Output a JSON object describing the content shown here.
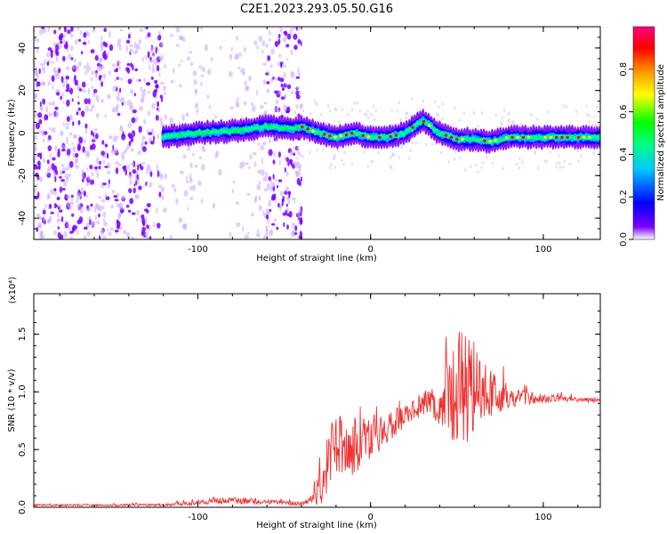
{
  "title": "C2E1.2023.293.05.50.G16",
  "chart_data": [
    {
      "type": "heatmap",
      "title": "C2E1.2023.293.05.50.G16",
      "xlabel": "Height of straight line (km)",
      "ylabel": "Frequency (Hz)",
      "xlim": [
        -195,
        133
      ],
      "ylim": [
        -50,
        50
      ],
      "x_ticks": [
        -100,
        0,
        100
      ],
      "y_ticks": [
        -40,
        -20,
        0,
        20,
        40
      ],
      "colorbar": {
        "label": "Normalized spectral amplitude",
        "range": [
          0.0,
          1.0
        ],
        "ticks": [
          "0.0",
          "0.2",
          "0.4",
          "0.6",
          "0.8"
        ],
        "colors": [
          "#ffffff",
          "#7a00ff",
          "#0000ff",
          "#00c8ff",
          "#00ff80",
          "#00ff00",
          "#ffff00",
          "#ffa000",
          "#ff0000",
          "#ff0080"
        ]
      },
      "ridge_frequency": {
        "x": [
          -120,
          -100,
          -80,
          -60,
          -45,
          -40,
          -30,
          -20,
          -10,
          0,
          10,
          20,
          30,
          40,
          50,
          60,
          70,
          80,
          90,
          100,
          110,
          120,
          133
        ],
        "y": [
          -2,
          0,
          1,
          3,
          2,
          3,
          0,
          -2,
          0,
          -2,
          -2,
          0,
          6,
          0,
          -3,
          -3,
          -4,
          -2,
          -2,
          -2,
          -2,
          -2,
          -2
        ]
      },
      "noise_region_x": [
        -195,
        -40
      ],
      "grid": false
    },
    {
      "type": "line",
      "xlabel": "Height of straight line (km)",
      "ylabel": "SNR (10 * v/v)",
      "y_multiplier": "(x10⁴)",
      "xlim": [
        -195,
        133
      ],
      "ylim": [
        0,
        1.85
      ],
      "x_ticks": [
        -100,
        0,
        100
      ],
      "y_ticks": [
        "0.0",
        "0.5",
        "1.0",
        "1.5"
      ],
      "color": "#f03030",
      "series": [
        {
          "x": [
            -195,
            -150,
            -120,
            -100,
            -90,
            -80,
            -70,
            -60,
            -50,
            -40,
            -35,
            -30,
            -25,
            -20,
            -15,
            -10,
            -5,
            0,
            5,
            10,
            15,
            20,
            25,
            30,
            35,
            40,
            45,
            50,
            55,
            60,
            65,
            70,
            75,
            80,
            90,
            100,
            110,
            120,
            133
          ],
          "y": [
            0.02,
            0.02,
            0.02,
            0.04,
            0.06,
            0.06,
            0.05,
            0.05,
            0.04,
            0.03,
            0.06,
            0.2,
            0.4,
            0.55,
            0.5,
            0.5,
            0.55,
            0.6,
            0.65,
            0.7,
            0.75,
            0.8,
            0.85,
            0.88,
            0.9,
            0.92,
            0.95,
            1.0,
            1.05,
            1.05,
            1.02,
            0.98,
            0.97,
            0.96,
            0.95,
            0.94,
            0.94,
            0.93,
            0.93
          ],
          "amp": [
            0.01,
            0.01,
            0.01,
            0.02,
            0.03,
            0.03,
            0.03,
            0.02,
            0.02,
            0.02,
            0.05,
            0.2,
            0.3,
            0.35,
            0.3,
            0.3,
            0.25,
            0.2,
            0.18,
            0.15,
            0.12,
            0.1,
            0.1,
            0.12,
            0.15,
            0.2,
            0.4,
            0.6,
            0.5,
            0.4,
            0.3,
            0.2,
            0.15,
            0.1,
            0.06,
            0.04,
            0.03,
            0.02,
            0.02
          ]
        }
      ]
    }
  ]
}
